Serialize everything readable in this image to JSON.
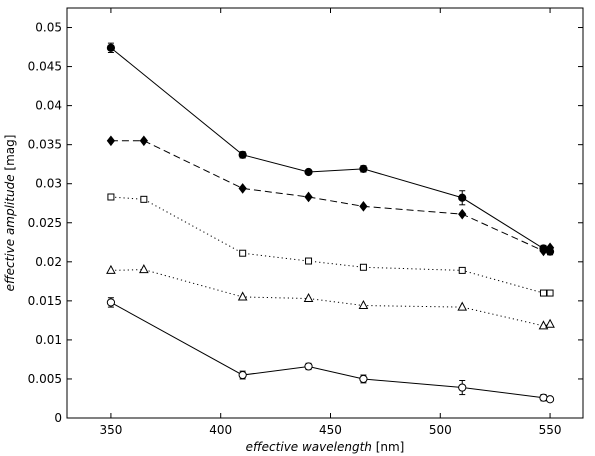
{
  "chart_data": {
    "type": "line",
    "xlabel": {
      "italic": "effective wavelength",
      "unit": " [nm]"
    },
    "ylabel": {
      "italic": "effective amplitude",
      "unit": " [mag]"
    },
    "xlim": [
      330,
      565
    ],
    "ylim": [
      0,
      0.0525
    ],
    "xticks": [
      350,
      400,
      450,
      500,
      550
    ],
    "yticks": [
      0,
      0.005,
      0.01,
      0.015,
      0.02,
      0.025,
      0.03,
      0.035,
      0.04,
      0.045,
      0.05
    ],
    "xtick_labels": [
      "350",
      "400",
      "450",
      "500",
      "550"
    ],
    "ytick_labels": [
      "0",
      "0.005",
      "0.01",
      "0.015",
      "0.02",
      "0.025",
      "0.03",
      "0.035",
      "0.04",
      "0.045",
      "0.05"
    ],
    "grid": false,
    "series": [
      {
        "marker": "filled-circle",
        "line": "solid",
        "x": [
          350,
          410,
          440,
          465,
          510,
          547,
          550
        ],
        "y": [
          0.0474,
          0.0337,
          0.0315,
          0.0319,
          0.0282,
          0.0217,
          0.0213
        ],
        "err": [
          0.0006,
          0.0004,
          0.0003,
          0.0004,
          0.0009,
          0.0004,
          0.0004
        ]
      },
      {
        "marker": "filled-diamond",
        "line": "dashed",
        "x": [
          350,
          365,
          410,
          440,
          465,
          510,
          547,
          550
        ],
        "y": [
          0.0355,
          0.0355,
          0.0294,
          0.0283,
          0.0271,
          0.0261,
          0.0214,
          0.0218
        ],
        "err": []
      },
      {
        "marker": "open-square",
        "line": "dotted",
        "x": [
          350,
          365,
          410,
          440,
          465,
          510,
          547,
          550
        ],
        "y": [
          0.0283,
          0.028,
          0.0211,
          0.0201,
          0.0193,
          0.0189,
          0.016,
          0.016
        ],
        "err": []
      },
      {
        "marker": "open-triangle",
        "line": "dotted",
        "x": [
          350,
          365,
          410,
          440,
          465,
          510,
          547,
          550
        ],
        "y": [
          0.0189,
          0.019,
          0.0155,
          0.0153,
          0.0144,
          0.0142,
          0.0118,
          0.012
        ],
        "err": []
      },
      {
        "marker": "open-circle",
        "line": "solid",
        "x": [
          350,
          410,
          440,
          465,
          510,
          547,
          550
        ],
        "y": [
          0.0148,
          0.0055,
          0.0066,
          0.005,
          0.0039,
          0.0026,
          0.0024
        ],
        "err": [
          0.0006,
          0.0005,
          0.0004,
          0.0005,
          0.0009,
          0.0004,
          0.0003
        ]
      }
    ]
  }
}
